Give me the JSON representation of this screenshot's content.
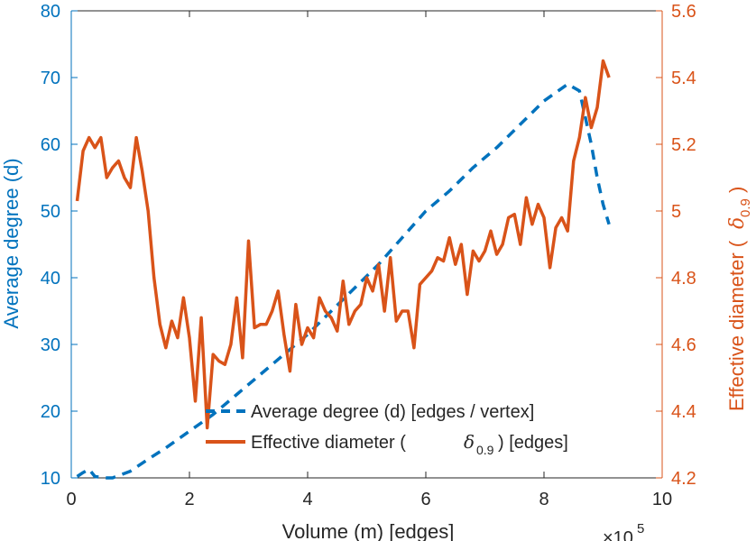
{
  "chart_data": {
    "type": "line",
    "x_label": "Volume (m) [edges]",
    "x_exponent_label": "×10",
    "x_exponent_power": "5",
    "x_range": [
      0,
      1000000
    ],
    "x_tick_values": [
      0,
      200000,
      400000,
      600000,
      800000,
      1000000
    ],
    "x_tick_labels": [
      "0",
      "2",
      "4",
      "6",
      "8",
      "10"
    ],
    "left_axis": {
      "label": "Average degree (d)",
      "color": "#0072BD",
      "range": [
        10,
        80
      ],
      "ticks": [
        10,
        20,
        30,
        40,
        50,
        60,
        70,
        80
      ]
    },
    "right_axis": {
      "label": "Effective diameter (",
      "label_symbol": "δ",
      "label_subscript": "0.9",
      "label_close": ")",
      "color": "#D95319",
      "range": [
        4.2,
        5.6
      ],
      "ticks": [
        "4.2",
        "4.4",
        "4.6",
        "4.8",
        "5",
        "5.2",
        "5.4",
        "5.6"
      ]
    },
    "grid": false,
    "legend_position": "bottom-center",
    "series": [
      {
        "name": "Average degree (d) [edges / vertex]",
        "axis": "left",
        "style": "dashed",
        "color": "#0072BD",
        "points": [
          [
            10000,
            10.2
          ],
          [
            20000,
            10.8
          ],
          [
            30000,
            11.3
          ],
          [
            40000,
            10.2
          ],
          [
            60000,
            10.0
          ],
          [
            70000,
            10.0
          ],
          [
            100000,
            11.0
          ],
          [
            130000,
            12.8
          ],
          [
            160000,
            14.5
          ],
          [
            200000,
            17.0
          ],
          [
            240000,
            19.5
          ],
          [
            280000,
            22.5
          ],
          [
            320000,
            25.5
          ],
          [
            360000,
            28.5
          ],
          [
            400000,
            31.5
          ],
          [
            440000,
            35.0
          ],
          [
            480000,
            38.5
          ],
          [
            520000,
            42.0
          ],
          [
            560000,
            46.0
          ],
          [
            600000,
            50.0
          ],
          [
            640000,
            53.0
          ],
          [
            680000,
            56.5
          ],
          [
            720000,
            59.5
          ],
          [
            760000,
            63.0
          ],
          [
            800000,
            66.5
          ],
          [
            840000,
            69.0
          ],
          [
            860000,
            68.0
          ],
          [
            870000,
            64.0
          ],
          [
            880000,
            60.0
          ],
          [
            890000,
            55.0
          ],
          [
            900000,
            51.0
          ],
          [
            910000,
            48.0
          ]
        ]
      },
      {
        "name": "Effective diameter (",
        "name_symbol": "δ",
        "name_subscript": "0.9",
        "name_suffix": ") [edges]",
        "axis": "right",
        "style": "solid",
        "color": "#D95319",
        "points": [
          [
            10000,
            5.03
          ],
          [
            20000,
            5.18
          ],
          [
            30000,
            5.22
          ],
          [
            40000,
            5.19
          ],
          [
            50000,
            5.22
          ],
          [
            60000,
            5.1
          ],
          [
            70000,
            5.13
          ],
          [
            80000,
            5.15
          ],
          [
            90000,
            5.1
          ],
          [
            100000,
            5.07
          ],
          [
            110000,
            5.22
          ],
          [
            120000,
            5.12
          ],
          [
            130000,
            5.0
          ],
          [
            140000,
            4.8
          ],
          [
            150000,
            4.66
          ],
          [
            160000,
            4.59
          ],
          [
            170000,
            4.67
          ],
          [
            180000,
            4.62
          ],
          [
            190000,
            4.74
          ],
          [
            200000,
            4.62
          ],
          [
            210000,
            4.43
          ],
          [
            220000,
            4.68
          ],
          [
            230000,
            4.35
          ],
          [
            240000,
            4.57
          ],
          [
            250000,
            4.55
          ],
          [
            260000,
            4.54
          ],
          [
            270000,
            4.6
          ],
          [
            280000,
            4.74
          ],
          [
            290000,
            4.56
          ],
          [
            300000,
            4.91
          ],
          [
            310000,
            4.65
          ],
          [
            320000,
            4.66
          ],
          [
            330000,
            4.66
          ],
          [
            340000,
            4.7
          ],
          [
            350000,
            4.76
          ],
          [
            360000,
            4.63
          ],
          [
            370000,
            4.52
          ],
          [
            380000,
            4.72
          ],
          [
            390000,
            4.6
          ],
          [
            400000,
            4.65
          ],
          [
            410000,
            4.62
          ],
          [
            420000,
            4.74
          ],
          [
            430000,
            4.7
          ],
          [
            440000,
            4.68
          ],
          [
            450000,
            4.64
          ],
          [
            460000,
            4.79
          ],
          [
            470000,
            4.66
          ],
          [
            480000,
            4.7
          ],
          [
            490000,
            4.72
          ],
          [
            500000,
            4.8
          ],
          [
            510000,
            4.76
          ],
          [
            520000,
            4.84
          ],
          [
            530000,
            4.7
          ],
          [
            540000,
            4.86
          ],
          [
            550000,
            4.67
          ],
          [
            560000,
            4.7
          ],
          [
            570000,
            4.7
          ],
          [
            580000,
            4.59
          ],
          [
            590000,
            4.78
          ],
          [
            600000,
            4.8
          ],
          [
            610000,
            4.82
          ],
          [
            620000,
            4.86
          ],
          [
            630000,
            4.85
          ],
          [
            640000,
            4.92
          ],
          [
            650000,
            4.84
          ],
          [
            660000,
            4.9
          ],
          [
            670000,
            4.75
          ],
          [
            680000,
            4.88
          ],
          [
            690000,
            4.85
          ],
          [
            700000,
            4.88
          ],
          [
            710000,
            4.94
          ],
          [
            720000,
            4.87
          ],
          [
            730000,
            4.9
          ],
          [
            740000,
            4.98
          ],
          [
            750000,
            4.99
          ],
          [
            760000,
            4.9
          ],
          [
            770000,
            5.04
          ],
          [
            780000,
            4.96
          ],
          [
            790000,
            5.02
          ],
          [
            800000,
            4.98
          ],
          [
            810000,
            4.83
          ],
          [
            820000,
            4.95
          ],
          [
            830000,
            4.98
          ],
          [
            840000,
            4.94
          ],
          [
            850000,
            5.15
          ],
          [
            860000,
            5.22
          ],
          [
            870000,
            5.34
          ],
          [
            880000,
            5.25
          ],
          [
            890000,
            5.31
          ],
          [
            900000,
            5.45
          ],
          [
            910000,
            5.4
          ]
        ]
      }
    ]
  }
}
